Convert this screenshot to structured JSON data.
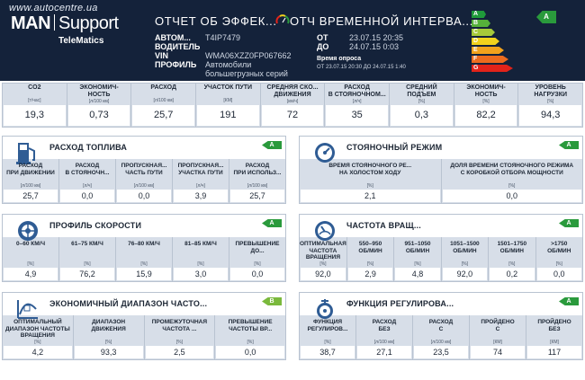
{
  "watermark": "www.autocentre.ua",
  "brand": {
    "man": "MAN",
    "support": "Support",
    "sub": "TeleMatics"
  },
  "header": {
    "title_left": "ОТЧЕТ ОБ ЭФФЕК...",
    "title_right": "ОТЧ  ВРЕМЕННОЙ ИНТЕРВА...",
    "fields": [
      {
        "key": "АВТОМ...",
        "value": "T4IP7479"
      },
      {
        "key": "ВОДИТЕЛЬ",
        "value": ""
      },
      {
        "key": "VIN",
        "value": "WMA06XZZ0FP067662"
      },
      {
        "key": "ПРОФИЛЬ",
        "value": "Автомобили"
      },
      {
        "key": "",
        "value": "большегрузных серий"
      }
    ],
    "from_label": "ОТ",
    "from_value": "23.07.15 20:35",
    "to_label": "ДО",
    "to_value": "24.07.15 0:03",
    "poll_label": "Время опроса",
    "poll_value": "ОТ 23.07.15 20:30 ДО 24.07.15 1:40",
    "grade": "A",
    "efficiency_scale": [
      {
        "letter": "A",
        "color": "#1f9a3a"
      },
      {
        "letter": "B",
        "color": "#56b03a"
      },
      {
        "letter": "C",
        "color": "#a6c93a"
      },
      {
        "letter": "D",
        "color": "#f2d21c"
      },
      {
        "letter": "E",
        "color": "#f2a21c"
      },
      {
        "letter": "F",
        "color": "#ec6b1e"
      },
      {
        "letter": "G",
        "color": "#e2231a"
      }
    ]
  },
  "summary": [
    {
      "label": "CO2",
      "unit": "[т/час]",
      "value": "19,3"
    },
    {
      "label": "ЭКОНОМИЧ-\nНОСТЬ",
      "unit": "[л/100 км]",
      "value": "0,73"
    },
    {
      "label": "РАСХОД",
      "unit": "[л/100 км]",
      "value": "25,7"
    },
    {
      "label": "УЧАСТОК ПУТИ",
      "unit": "[КМ]",
      "value": "191"
    },
    {
      "label": "СРЕДНЯЯ СКО...\nДВИЖЕНИЯ",
      "unit": "[км/ч]",
      "value": "72"
    },
    {
      "label": "РАСХОД\nВ СТОЯНОЧНОМ...",
      "unit": "[л/ч]",
      "value": "35"
    },
    {
      "label": "СРЕДНИЙ\nПОДЪЕМ",
      "unit": "[%]",
      "value": "0,3"
    },
    {
      "label": "ЭКОНОМИЧ-\nНОСТЬ",
      "unit": "[%]",
      "value": "82,2"
    },
    {
      "label": "УРОВЕНЬ\nНАГРУЗКИ",
      "unit": "[%]",
      "value": "94,3"
    }
  ],
  "panels": [
    {
      "id": "fuel",
      "title": "РАСХОД ТОПЛИВА",
      "icon": "fuel-pump-icon",
      "badge": "A",
      "badge_color": "#2a9a3c",
      "cols": [
        {
          "label": "РАСХОД\nПРИ ДВИЖЕНИИ",
          "unit": "[л/100 км]",
          "value": "25,7"
        },
        {
          "label": "РАСХОД\nВ СТОЯНОЧН...",
          "unit": "[л/ч]",
          "value": "0,0"
        },
        {
          "label": "ПРОПУСКНАЯ...\nЧАСТЬ ПУТИ",
          "unit": "[л/100 км]",
          "value": "0,0"
        },
        {
          "label": "ПРОПУСКНАЯ...\nУЧАСТКА ПУТИ",
          "unit": "[л/ч]",
          "value": "3,9"
        },
        {
          "label": "РАСХОД\nПРИ ИСПОЛЬЗ...",
          "unit": "[л/100 км]",
          "value": "25,7"
        }
      ]
    },
    {
      "id": "idle",
      "title": "СТОЯНОЧНЫЙ РЕЖИМ",
      "icon": "speedometer-icon",
      "badge": "A",
      "badge_color": "#2a9a3c",
      "cols": [
        {
          "label": "ВРЕМЯ СТОЯНОЧНОГО РЕ...\nНА ХОЛОСТОМ ХОДУ",
          "unit": "[%]",
          "value": "2,1"
        },
        {
          "label": "ДОЛЯ ВРЕМЕНИ СТОЯНОЧНОГО РЕЖИМА\nС КОРОБКОЙ ОТБОРА МОЩНОСТИ",
          "unit": "[%]",
          "value": "0,0"
        }
      ]
    },
    {
      "id": "speed",
      "title": "ПРОФИЛЬ СКОРОСТИ",
      "icon": "wheel-icon",
      "badge": "A",
      "badge_color": "#2a9a3c",
      "cols": [
        {
          "label": "0–60 КМ/Ч",
          "unit": "[%]",
          "value": "4,9"
        },
        {
          "label": "61–75 КМ/Ч",
          "unit": "[%]",
          "value": "76,2"
        },
        {
          "label": "76–80 КМ/Ч",
          "unit": "[%]",
          "value": "15,9"
        },
        {
          "label": "81–85 КМ/Ч",
          "unit": "[%]",
          "value": "3,0"
        },
        {
          "label": "ПРЕВЫШЕНИЕ\nДО...",
          "unit": "[%]",
          "value": "0,0"
        }
      ]
    },
    {
      "id": "rpm",
      "title": "ЧАСТОТА ВРАЩ...",
      "icon": "tachometer-icon",
      "badge": "A",
      "badge_color": "#2a9a3c",
      "cols": [
        {
          "label": "ОПТИМАЛЬНАЯ\nЧАСТОТА\nВРАЩЕНИЯ",
          "unit": "[%]",
          "value": "92,0"
        },
        {
          "label": "550–950\nОБ/МИН",
          "unit": "[%]",
          "value": "2,9"
        },
        {
          "label": "951–1050\nОБ/МИН",
          "unit": "[%]",
          "value": "4,8"
        },
        {
          "label": "1051–1500\nОБ/МИН",
          "unit": "[%]",
          "value": "92,0"
        },
        {
          "label": "1501–1750\nОБ/МИН",
          "unit": "[%]",
          "value": "0,2"
        },
        {
          "label": ">1750\nОБ/МИН",
          "unit": "[%]",
          "value": "0,0"
        }
      ]
    },
    {
      "id": "eco",
      "title": "ЭКОНОМИЧНЫЙ ДИАПАЗОН ЧАСТО...",
      "icon": "rpm-curve-icon",
      "badge": "B",
      "badge_color": "#7ab93c",
      "cols": [
        {
          "label": "ОПТИМАЛЬНЫЙ\nДИАПАЗОН ЧАСТОТЫ\nВРАЩЕНИЯ",
          "unit": "[%]",
          "value": "4,2"
        },
        {
          "label": "ДИАПАЗОН\nДВИЖЕНИЯ",
          "unit": "[%]",
          "value": "93,3"
        },
        {
          "label": "ПРОМЕЖУТОЧНАЯ\nЧАСТОТА ...",
          "unit": "[%]",
          "value": "2,5"
        },
        {
          "label": "ПРЕВЫШЕНИЕ\nЧАСТОТЫ ВР...",
          "unit": "[%]",
          "value": "0,0"
        }
      ]
    },
    {
      "id": "control",
      "title": "ФУНКЦИЯ РЕГУЛИРОВА...",
      "icon": "cruise-control-icon",
      "badge": "A",
      "badge_color": "#2a9a3c",
      "cols": [
        {
          "label": "ФУНКЦИЯ\nРЕГУЛИРОВ...",
          "unit": "[%]",
          "value": "38,7"
        },
        {
          "label": "РАСХОД\nБЕЗ",
          "unit": "[л/100 км]",
          "value": "27,1"
        },
        {
          "label": "РАСХОД\nС",
          "unit": "[л/100 км]",
          "value": "23,5"
        },
        {
          "label": "ПРОЙДЕНО\nС",
          "unit": "[КМ]",
          "value": "74"
        },
        {
          "label": "ПРОЙДЕНО\nБЕЗ",
          "unit": "[КМ]",
          "value": "117"
        }
      ]
    }
  ]
}
